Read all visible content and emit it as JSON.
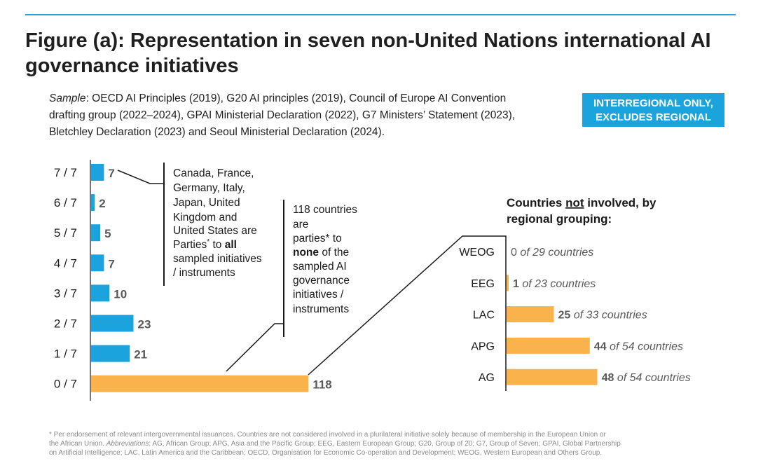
{
  "title_line1": "Figure (a): Representation in seven non-United Nations international AI",
  "title_line2": "governance initiatives",
  "sample_label": "Sample",
  "sample_line1_rest": ": OECD AI Principles (2019), G20 AI principles (2019), Council of Europe AI Convention",
  "sample_line2": "drafting group (2022–2024), GPAI Ministerial Declaration (2022), G7 Ministers’ Statement (2023),",
  "sample_line3": "Bletchley Declaration (2023) and Seoul Ministerial Declaration (2024).",
  "badge": {
    "line1": "INTERREGIONAL ONLY,",
    "line2": "EXCLUDES REGIONAL"
  },
  "colors": {
    "blue": "#1aa3dc",
    "orange": "#f9b24c",
    "value_text": "#595959",
    "axis": "#1a1a1a"
  },
  "annotation_g7": {
    "lines": [
      "Canada, France,",
      "Germany, Italy,",
      "Japan, United",
      "Kingdom and",
      "United States are"
    ],
    "line6_pre": "Parties",
    "line6_sup": "*",
    "line6_mid": " to ",
    "line6_bold": "all",
    "line7": "sampled initiatives",
    "line8": "/ instruments"
  },
  "annotation_none": {
    "line1": "118 countries",
    "line2": "are",
    "line3": "parties* to",
    "line4_bold": "none",
    "line4_rest": " of the",
    "line5": "sampled AI",
    "line6": "governance",
    "line7": "initiatives /",
    "line8": "instruments"
  },
  "right_title": {
    "line1_pre": "Countries ",
    "line1_ul": "not",
    "line1_post": " involved, by",
    "line2": "regional grouping:"
  },
  "chart_data": [
    {
      "type": "bar",
      "orientation": "horizontal",
      "categories": [
        "7 / 7",
        "6 / 7",
        "5 / 7",
        "4 / 7",
        "3 / 7",
        "2 / 7",
        "1 / 7",
        "0 / 7"
      ],
      "values": [
        7,
        2,
        5,
        7,
        10,
        23,
        21,
        118
      ],
      "data_labels": [
        "7",
        "2",
        "5",
        "7",
        "10",
        "23",
        "21",
        "118"
      ],
      "highlight": "0 / 7"
    },
    {
      "type": "bar",
      "orientation": "horizontal",
      "title": "Countries not involved, by regional grouping:",
      "categories": [
        "WEOG",
        "EEG",
        "LAC",
        "APG",
        "AG"
      ],
      "values": [
        0,
        1,
        25,
        44,
        48
      ],
      "totals": [
        29,
        23,
        33,
        54,
        54
      ],
      "data_labels": [
        "0",
        "1",
        "25",
        "44",
        "48"
      ],
      "label_suffixes": [
        " of 29 countries",
        " of 23 countries",
        " of 33 countries",
        " of 54 countries",
        " of 54 countries"
      ]
    }
  ],
  "footnote": {
    "line1": "* Per endorsement of relevant intergovernmental issuances. Countries are not considered involved in a plurilateral initiative solely because of membership in the European Union or",
    "line2_pre": "the African Union.  ",
    "line2_it": "Abbreviations",
    "line2_rest": ": AG, African Group; APG, Asia and the Pacific Group; EEG, Eastern European Group; G20, Group of 20; G7, Group of Seven; GPAI, Global Partnership",
    "line3": "on Artificial Intelligence; LAC, Latin America and the Caribbean; OECD, Organisation for Economic Co-operation and Development; WEOG, Western European and Others Group."
  }
}
